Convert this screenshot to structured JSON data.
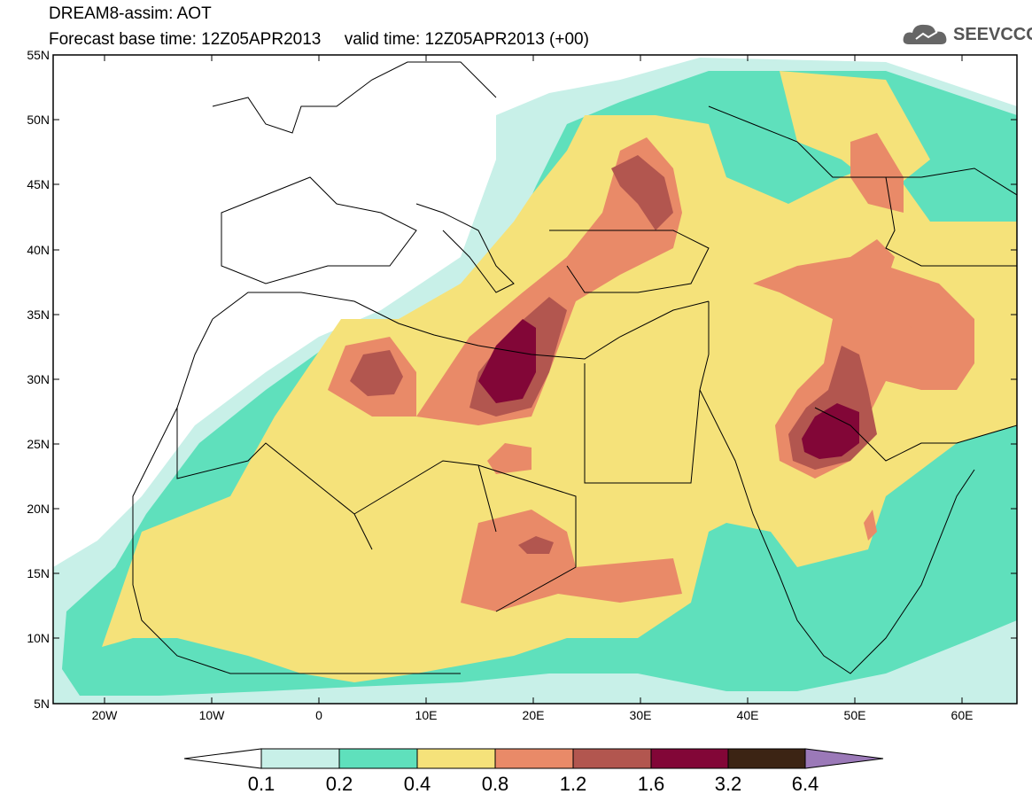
{
  "header": {
    "title_line1": "DREAM8-assim: AOT",
    "base_time_label": "Forecast base time: 12Z05APR2013",
    "valid_time_label": "valid time: 12Z05APR2013 (+00)",
    "logo_text": "SEEVCCC"
  },
  "axes": {
    "lat_labels": [
      "55N",
      "50N",
      "45N",
      "40N",
      "35N",
      "30N",
      "25N",
      "20N",
      "15N",
      "10N",
      "5N"
    ],
    "lon_labels": [
      "20W",
      "10W",
      "0",
      "10E",
      "20E",
      "30E",
      "40E",
      "50E",
      "60E"
    ]
  },
  "colorbar": {
    "levels": [
      "0.1",
      "0.2",
      "0.4",
      "0.8",
      "1.2",
      "1.6",
      "3.2",
      "6.4"
    ],
    "colors": [
      "#ffffff",
      "#c8f0e8",
      "#5fe0bc",
      "#f5e27a",
      "#e98a68",
      "#b2564f",
      "#820637",
      "#3c2414",
      "#9b79b8"
    ]
  }
}
